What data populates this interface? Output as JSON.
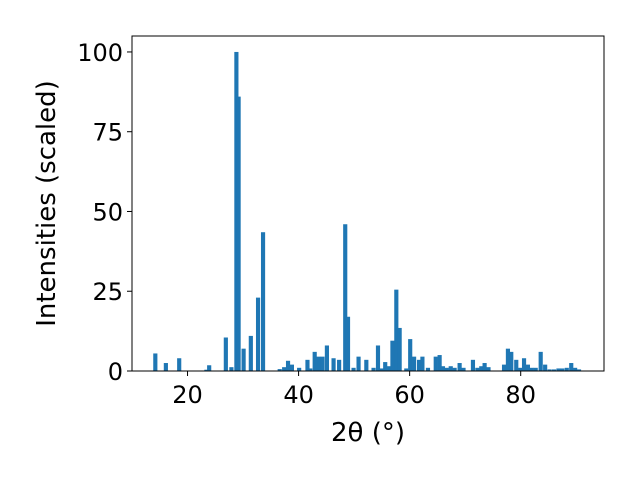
{
  "chart_data": {
    "type": "bar",
    "xlabel": "2θ (°)",
    "ylabel": "Intensities (scaled)",
    "xlim": [
      10,
      95
    ],
    "ylim": [
      0,
      105
    ],
    "xticks": [
      20,
      40,
      60,
      80
    ],
    "yticks": [
      0,
      25,
      50,
      75,
      100
    ],
    "bar_width": 0.75,
    "color": "#1f77b4",
    "grid": false,
    "x": [
      14.2,
      16.1,
      18.5,
      23.4,
      23.9,
      26.9,
      27.9,
      28.8,
      29.2,
      30.1,
      31.4,
      32.7,
      33.6,
      36.6,
      37.4,
      38.1,
      38.8,
      40.1,
      41.6,
      42.1,
      42.9,
      43.6,
      44.3,
      45.1,
      46.3,
      47.3,
      48.4,
      48.9,
      49.9,
      50.8,
      52.2,
      53.5,
      54.3,
      55.0,
      55.6,
      56.3,
      56.9,
      57.6,
      58.2,
      59.4,
      60.1,
      60.8,
      61.7,
      62.3,
      63.3,
      64.7,
      65.4,
      66.0,
      66.7,
      67.4,
      68.1,
      69.0,
      69.7,
      71.4,
      72.2,
      72.9,
      73.5,
      74.2,
      77.0,
      77.7,
      78.3,
      79.2,
      79.9,
      80.6,
      81.3,
      82.0,
      82.7,
      83.6,
      84.4,
      85.2,
      86.0,
      86.8,
      87.5,
      88.3,
      89.1,
      89.8,
      90.5
    ],
    "values": [
      5.5,
      2.5,
      4.0,
      0.4,
      1.8,
      10.5,
      1.2,
      100,
      86,
      7.0,
      11.0,
      23.0,
      43.5,
      0.6,
      1.2,
      3.2,
      2.0,
      1.0,
      3.5,
      0.8,
      6.0,
      4.5,
      4.5,
      8.0,
      4.0,
      3.5,
      46.0,
      17.0,
      1.0,
      4.5,
      3.5,
      1.0,
      8.0,
      0.8,
      2.8,
      1.5,
      9.5,
      25.5,
      13.5,
      0.8,
      10.0,
      4.5,
      3.5,
      4.5,
      1.0,
      4.5,
      5.0,
      1.5,
      1.0,
      1.5,
      1.0,
      2.5,
      1.0,
      3.5,
      1.0,
      1.5,
      2.5,
      1.2,
      2.0,
      7.0,
      6.0,
      3.5,
      1.0,
      4.0,
      2.0,
      1.0,
      1.0,
      6.0,
      2.0,
      0.5,
      0.5,
      0.8,
      0.8,
      1.0,
      2.5,
      1.0,
      0.5
    ]
  }
}
